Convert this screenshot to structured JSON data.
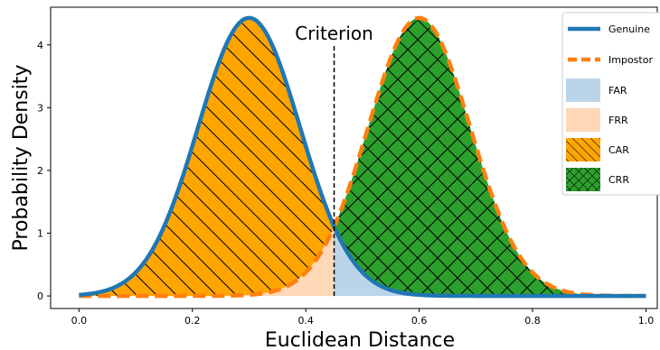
{
  "chart_data": {
    "type": "area",
    "title": "",
    "xlabel": "Euclidean Distance",
    "ylabel": "Probability Density",
    "xlim": [
      -0.05,
      1.02
    ],
    "ylim": [
      -0.2,
      4.6
    ],
    "xticks": [
      0.0,
      0.2,
      0.4,
      0.6,
      0.8,
      1.0
    ],
    "xtick_labels": [
      "0.0",
      "0.2",
      "0.4",
      "0.6",
      "0.8",
      "1.0"
    ],
    "yticks": [
      0,
      1,
      2,
      3,
      4
    ],
    "ytick_labels": [
      "0",
      "1",
      "2",
      "3",
      "4"
    ],
    "grid": false,
    "threshold": {
      "x": 0.45,
      "y_top": 4.0,
      "label": "Criterion"
    },
    "series": [
      {
        "name": "Genuine",
        "distribution": "normal",
        "mean": 0.3,
        "std": 0.09,
        "peak": 4.43,
        "color": "#1f77b4",
        "style": "solid"
      },
      {
        "name": "Impostor",
        "distribution": "normal",
        "mean": 0.6,
        "std": 0.09,
        "peak": 4.43,
        "color": "#ff7f0e",
        "style": "dashed"
      }
    ],
    "regions": [
      {
        "name": "FAR",
        "color": "#bcd4e8",
        "hatch": "none"
      },
      {
        "name": "FRR",
        "color": "#ffd8b8",
        "hatch": "none"
      },
      {
        "name": "CAR",
        "color": "#ffa500",
        "hatch": "diagonal"
      },
      {
        "name": "CRR",
        "color": "#2ca02c",
        "hatch": "cross"
      }
    ],
    "legend": {
      "placement": "top-right"
    }
  }
}
